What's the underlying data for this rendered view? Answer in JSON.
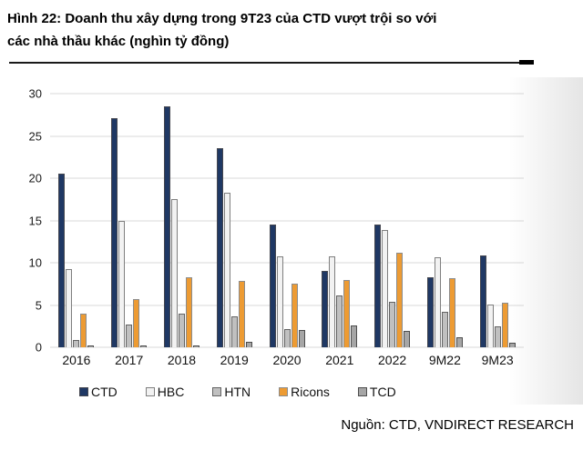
{
  "header": {
    "title_line1": "Hình 22: Doanh thu xây dựng trong 9T23 của CTD vượt trội so với",
    "title_line2": "các nhà thầu khác (nghìn tỷ đồng)"
  },
  "footer": {
    "source": "Nguồn: CTD, VNDIRECT RESEARCH"
  },
  "chart_data": {
    "type": "bar",
    "title": "Doanh thu xây dựng trong 9T23 của CTD vượt trội so với các nhà thầu khác",
    "unit": "nghìn tỷ đồng",
    "categories": [
      "2016",
      "2017",
      "2018",
      "2019",
      "2020",
      "2021",
      "2022",
      "9M22",
      "9M23"
    ],
    "series": [
      {
        "name": "CTD",
        "color": "#1F3864",
        "border": "#44464f",
        "values": [
          20.5,
          27.1,
          28.5,
          23.6,
          14.5,
          9.0,
          14.5,
          8.3,
          10.9
        ]
      },
      {
        "name": "HBC",
        "color": "#F2F2F2",
        "border": "#7f7f7f",
        "values": [
          9.2,
          15.0,
          17.5,
          18.3,
          10.8,
          10.8,
          13.9,
          10.7,
          5.1
        ]
      },
      {
        "name": "HTN",
        "color": "#C0C0C0",
        "border": "#636363",
        "values": [
          0.9,
          2.7,
          4.0,
          3.7,
          2.2,
          6.1,
          5.4,
          4.2,
          2.5
        ]
      },
      {
        "name": "Ricons",
        "color": "#ED9B33",
        "border": "#8c8c8c",
        "values": [
          4.0,
          5.7,
          8.3,
          7.9,
          7.5,
          8.0,
          11.2,
          8.2,
          5.3
        ]
      },
      {
        "name": "TCD",
        "color": "#A6A6A6",
        "border": "#4d4d4d",
        "values": [
          0.2,
          0.2,
          0.2,
          0.7,
          2.0,
          2.6,
          1.9,
          1.2,
          0.5
        ]
      }
    ],
    "xlabel": "",
    "ylabel": "",
    "ylim": [
      0,
      30
    ],
    "yticks": [
      0,
      5,
      10,
      15,
      20,
      25,
      30
    ],
    "grid": true,
    "legend_position": "bottom",
    "gridline_color": "#d9d9d9"
  }
}
